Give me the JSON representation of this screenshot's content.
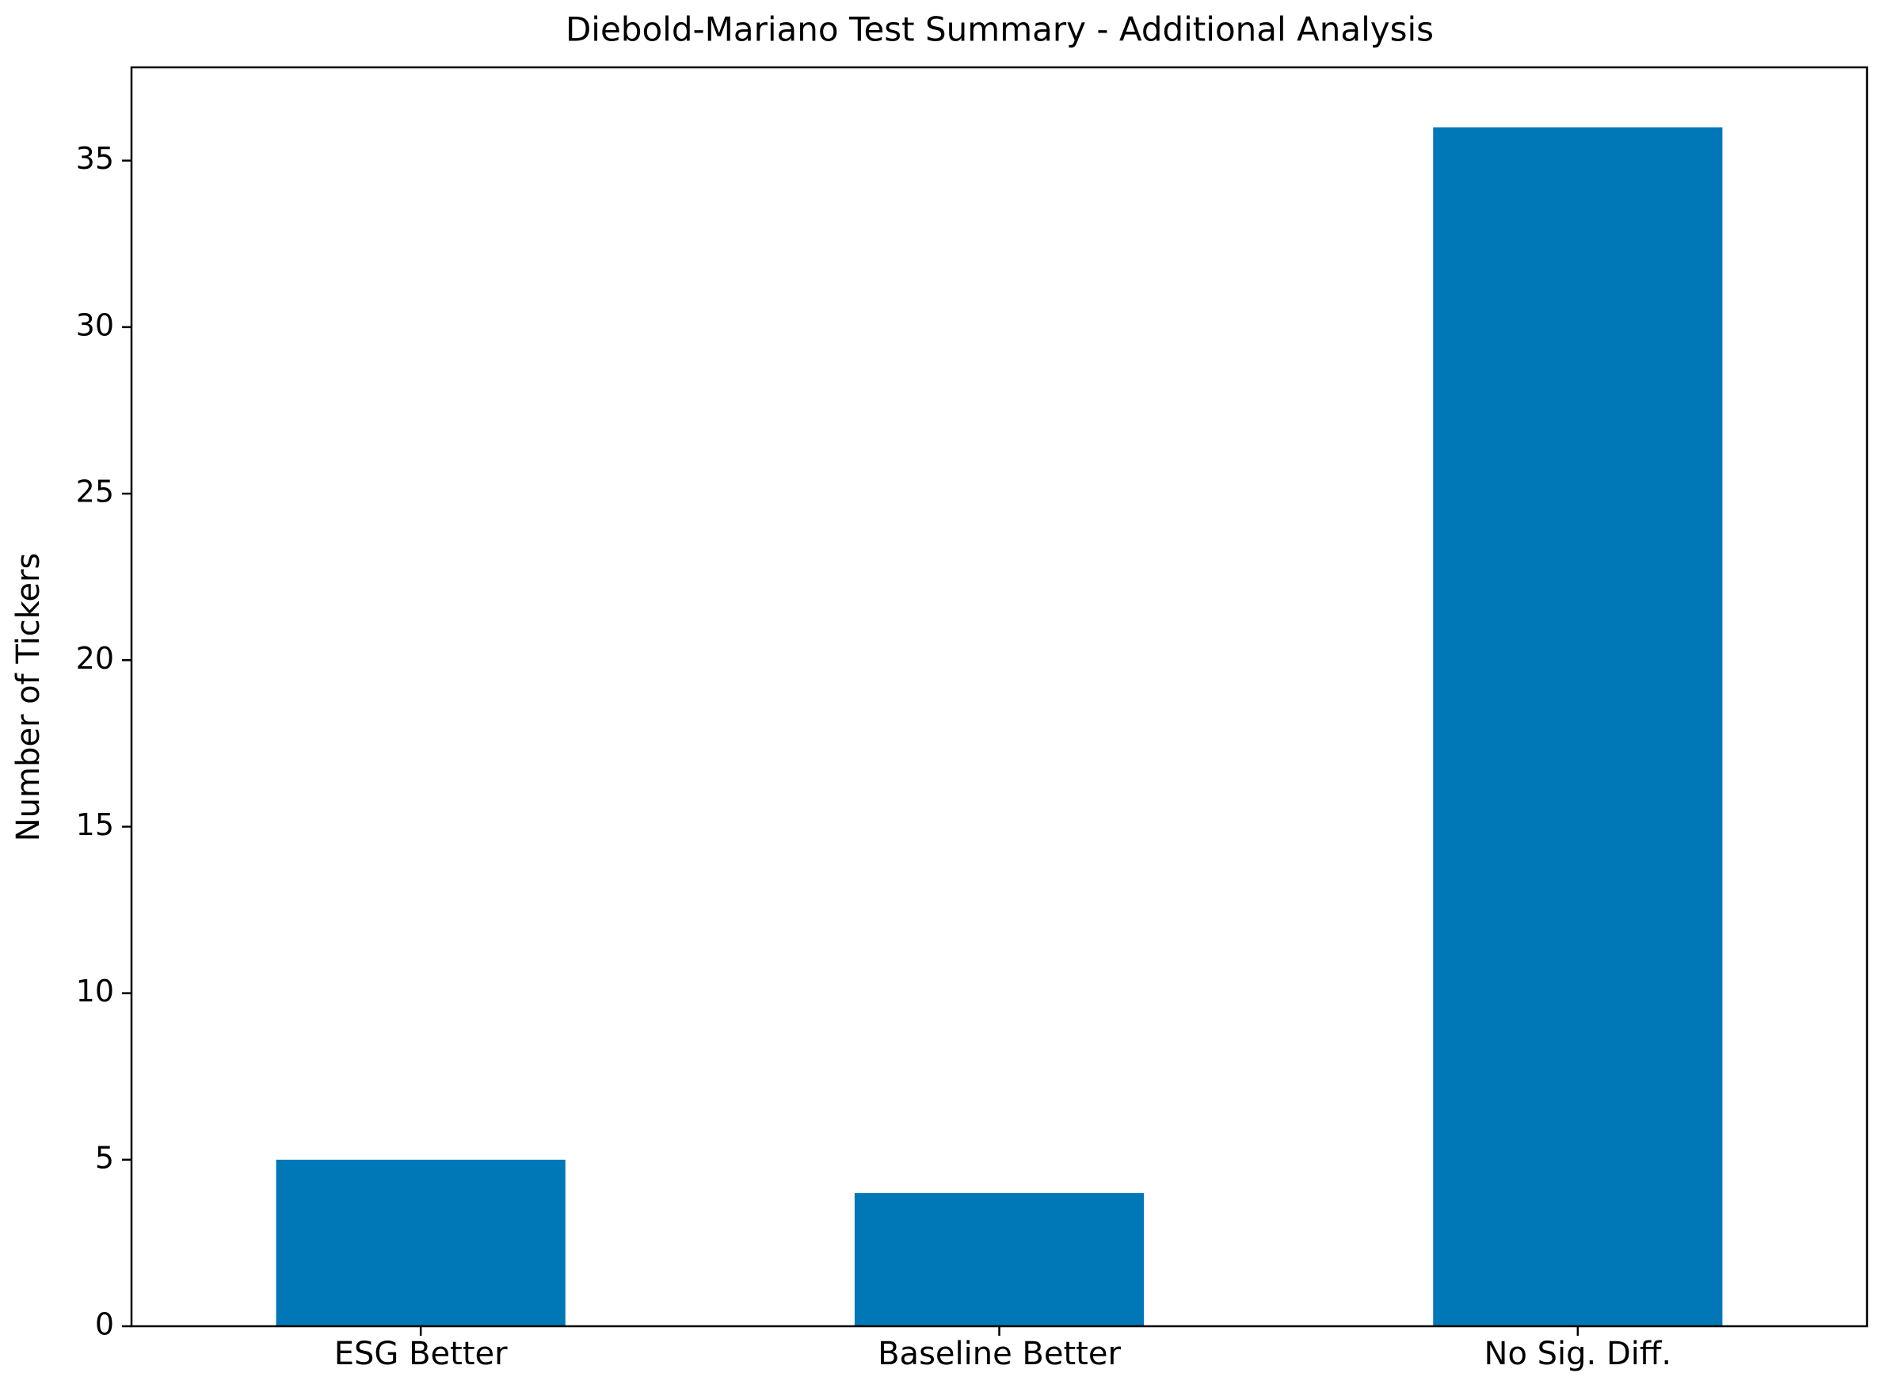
{
  "chart_data": {
    "type": "bar",
    "title": "Diebold-Mariano Test Summary - Additional Analysis",
    "xlabel": "",
    "ylabel": "Number of Tickers",
    "categories": [
      "ESG Better",
      "Baseline Better",
      "No Sig. Diff."
    ],
    "values": [
      5,
      4,
      36
    ],
    "ylim": [
      0,
      37.8
    ],
    "yticks": [
      0,
      5,
      10,
      15,
      20,
      25,
      30,
      35
    ],
    "ytick_labels": [
      "0",
      "5",
      "10",
      "15",
      "20",
      "25",
      "30",
      "35"
    ],
    "bar_color": "#0077b6",
    "grid": false,
    "legend": "none"
  }
}
